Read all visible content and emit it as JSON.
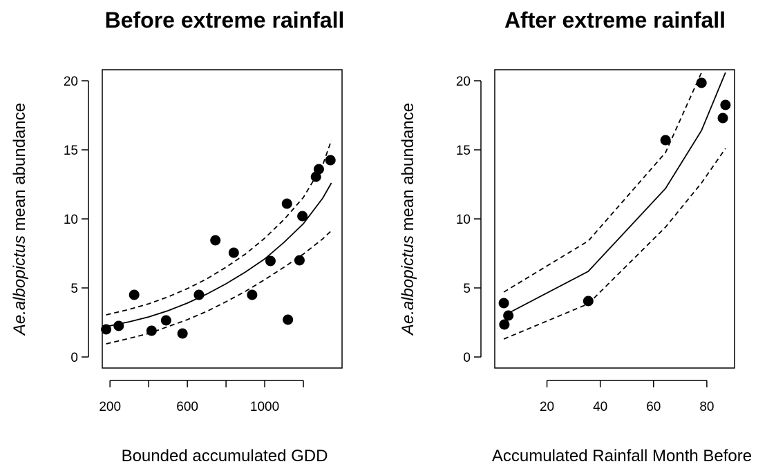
{
  "chart_data": [
    {
      "type": "scatter",
      "title": "Before extreme rainfall",
      "xlabel": "Bounded accumulated GDD",
      "ylabel_italic": "Ae.albopictus",
      "ylabel_rest": " mean abundance",
      "xlim": [
        160,
        1400
      ],
      "ylim": [
        -0.8,
        20.8
      ],
      "xticks": [
        200,
        400,
        600,
        800,
        1000,
        1200
      ],
      "xtick_labels": [
        "200",
        "",
        "600",
        "",
        "1000",
        ""
      ],
      "yticks": [
        0,
        5,
        10,
        15,
        20
      ],
      "ytick_labels": [
        "0",
        "5",
        "10",
        "15",
        "20"
      ],
      "points": {
        "x": [
          180,
          245,
          325,
          415,
          490,
          575,
          660,
          745,
          840,
          935,
          1030,
          1115,
          1120,
          1180,
          1195,
          1265,
          1280,
          1340
        ],
        "y": [
          2.0,
          2.25,
          4.5,
          1.9,
          2.65,
          1.7,
          4.5,
          8.45,
          7.55,
          4.5,
          6.95,
          11.1,
          2.7,
          7.0,
          10.2,
          13.05,
          13.6,
          14.25
        ]
      },
      "fit": {
        "x": [
          180,
          300,
          400,
          500,
          600,
          700,
          800,
          900,
          1000,
          1100,
          1200,
          1300,
          1345
        ],
        "y": [
          2.2,
          2.55,
          2.9,
          3.35,
          3.9,
          4.55,
          5.3,
          6.15,
          7.1,
          8.3,
          9.65,
          11.5,
          12.6
        ]
      },
      "upper": {
        "x": [
          180,
          300,
          400,
          500,
          600,
          700,
          800,
          900,
          1000,
          1100,
          1200,
          1300,
          1345
        ],
        "y": [
          3.05,
          3.45,
          3.85,
          4.35,
          4.95,
          5.65,
          6.5,
          7.45,
          8.6,
          9.95,
          11.55,
          13.9,
          15.7
        ]
      },
      "lower": {
        "x": [
          180,
          300,
          400,
          500,
          600,
          700,
          800,
          900,
          1000,
          1100,
          1200,
          1300,
          1345
        ],
        "y": [
          0.95,
          1.35,
          1.7,
          2.2,
          2.7,
          3.3,
          4.0,
          4.75,
          5.6,
          6.5,
          7.45,
          8.55,
          9.15
        ]
      }
    },
    {
      "type": "scatter",
      "title": "After extreme rainfall",
      "xlabel": "Accumulated Rainfall Month Before",
      "ylabel_italic": "Ae.albopictus",
      "ylabel_rest": " mean abundance",
      "xlim": [
        0.4,
        90.4
      ],
      "ylim": [
        -0.8,
        20.8
      ],
      "xticks": [
        20,
        40,
        60,
        80
      ],
      "xtick_labels": [
        "20",
        "40",
        "60",
        "80"
      ],
      "yticks": [
        0,
        5,
        10,
        15,
        20
      ],
      "ytick_labels": [
        "0",
        "5",
        "10",
        "15",
        "20"
      ],
      "points": {
        "x": [
          3.8,
          4.0,
          5.5,
          35.5,
          64.5,
          78.0,
          86.0,
          87.0
        ],
        "y": [
          3.9,
          2.35,
          3.0,
          4.05,
          15.7,
          19.85,
          17.3,
          18.25
        ]
      },
      "fit": {
        "x": [
          3.8,
          35.5,
          64.5,
          78.0,
          87.0
        ],
        "y": [
          3.0,
          6.2,
          12.2,
          16.4,
          20.6
        ]
      },
      "upper": {
        "x": [
          3.8,
          35.5,
          64.5,
          78.0
        ],
        "y": [
          4.7,
          8.4,
          14.8,
          20.6
        ]
      },
      "lower": {
        "x": [
          3.8,
          35.5,
          64.5,
          78.0,
          87.0
        ],
        "y": [
          1.3,
          3.85,
          9.4,
          12.6,
          15.1
        ]
      }
    }
  ]
}
